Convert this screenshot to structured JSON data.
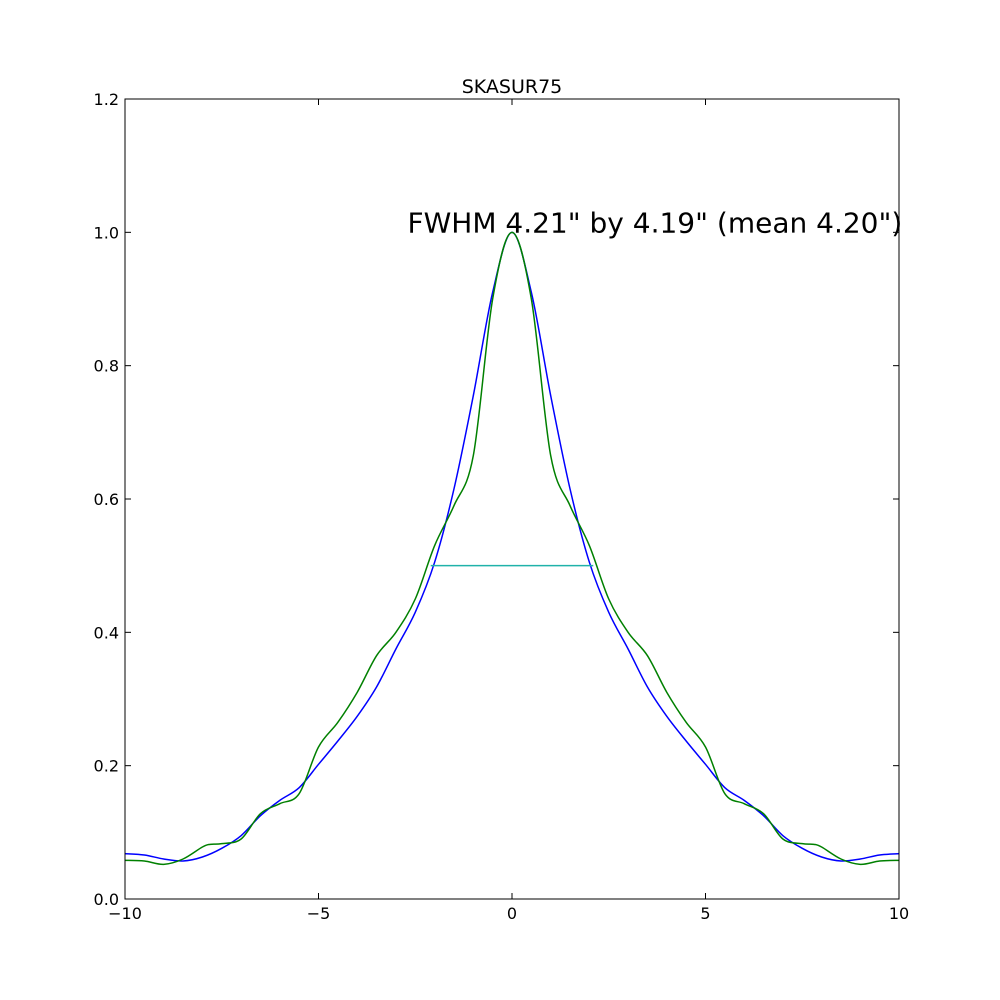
{
  "chart_data": {
    "type": "line",
    "title": "SKASUR75",
    "xlabel": "",
    "ylabel": "",
    "xlim": [
      -10,
      10
    ],
    "ylim": [
      0.0,
      1.2
    ],
    "x_ticks": [
      -10,
      -5,
      0,
      5,
      10
    ],
    "x_tick_labels": [
      "−10",
      "−5",
      "0",
      "5",
      "10"
    ],
    "y_ticks": [
      0.0,
      0.2,
      0.4,
      0.6,
      0.8,
      1.0,
      1.2
    ],
    "y_tick_labels": [
      "0.0",
      "0.2",
      "0.4",
      "0.6",
      "0.8",
      "1.0",
      "1.2"
    ],
    "grid": false,
    "annotation": {
      "text": "FWHM 4.21\" by 4.19\" (mean 4.20\")",
      "x": -2.7,
      "y": 1.0
    },
    "series": [
      {
        "color": "#0000ff",
        "x": [
          -10,
          -9.5,
          -9.0,
          -8.5,
          -8.0,
          -7.5,
          -7.0,
          -6.5,
          -6.0,
          -5.5,
          -5.0,
          -4.5,
          -4.0,
          -3.5,
          -3.0,
          -2.5,
          -2.0,
          -1.5,
          -1.0,
          -0.5,
          0,
          0.5,
          1.0,
          1.5,
          2.0,
          2.5,
          3.0,
          3.5,
          4.0,
          4.5,
          5.0,
          5.5,
          6.0,
          6.5,
          7.0,
          7.5,
          8.0,
          8.5,
          9.0,
          9.5,
          10
        ],
        "y": [
          0.068,
          0.066,
          0.06,
          0.057,
          0.063,
          0.076,
          0.095,
          0.125,
          0.148,
          0.167,
          0.202,
          0.237,
          0.274,
          0.318,
          0.375,
          0.43,
          0.505,
          0.615,
          0.755,
          0.91,
          1.0,
          0.91,
          0.755,
          0.615,
          0.505,
          0.43,
          0.375,
          0.318,
          0.274,
          0.237,
          0.202,
          0.167,
          0.148,
          0.125,
          0.095,
          0.076,
          0.063,
          0.057,
          0.06,
          0.066,
          0.068
        ]
      },
      {
        "color": "#008000",
        "x": [
          -10,
          -9.5,
          -9.0,
          -8.5,
          -8.0,
          -7.8,
          -7.5,
          -7.0,
          -6.5,
          -6.0,
          -5.5,
          -5.0,
          -4.5,
          -4.0,
          -3.5,
          -3.0,
          -2.5,
          -2.0,
          -1.5,
          -1.0,
          -0.5,
          0,
          0.5,
          1.0,
          1.5,
          2.0,
          2.5,
          3.0,
          3.5,
          4.0,
          4.5,
          5.0,
          5.5,
          6.0,
          6.5,
          7.0,
          7.5,
          7.8,
          8.0,
          8.5,
          9.0,
          9.5,
          10
        ],
        "y": [
          0.058,
          0.057,
          0.052,
          0.06,
          0.078,
          0.082,
          0.083,
          0.09,
          0.128,
          0.143,
          0.158,
          0.228,
          0.265,
          0.31,
          0.365,
          0.4,
          0.45,
          0.53,
          0.59,
          0.665,
          0.9,
          1.0,
          0.9,
          0.665,
          0.59,
          0.53,
          0.45,
          0.4,
          0.365,
          0.31,
          0.265,
          0.228,
          0.158,
          0.143,
          0.128,
          0.09,
          0.083,
          0.082,
          0.078,
          0.06,
          0.052,
          0.057,
          0.058
        ]
      },
      {
        "color": "#20b2aa",
        "x": [
          -2.1,
          2.1
        ],
        "y": [
          0.5,
          0.5
        ]
      }
    ]
  }
}
